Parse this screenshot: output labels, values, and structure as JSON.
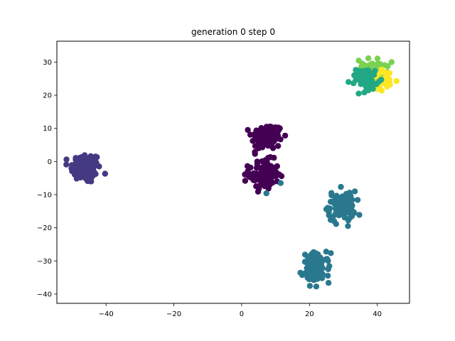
{
  "chart_data": {
    "type": "scatter",
    "title": "generation 0 step 0",
    "xlabel": "",
    "ylabel": "",
    "xlim": [
      -54.5,
      49.5
    ],
    "ylim": [
      -42.8,
      36.3
    ],
    "xticks": [
      -40,
      -20,
      0,
      20,
      40
    ],
    "yticks": [
      -40,
      -30,
      -20,
      -10,
      0,
      10,
      20,
      30
    ],
    "xtick_labels": [
      "−40",
      "−20",
      "0",
      "20",
      "40"
    ],
    "ytick_labels": [
      "−40",
      "−30",
      "−20",
      "−10",
      "0",
      "10",
      "20",
      "30"
    ],
    "grid": false,
    "legend": "none",
    "clusters": [
      {
        "cx": -46,
        "cy": -2,
        "sx": 2.2,
        "sy": 2.3,
        "n": 110,
        "color": "#443983"
      },
      {
        "cx": 7.5,
        "cy": 7.5,
        "sx": 2.3,
        "sy": 2.0,
        "n": 110,
        "color": "#440154"
      },
      {
        "cx": 6.5,
        "cy": -4,
        "sx": 2.2,
        "sy": 2.2,
        "n": 110,
        "color": "#440154"
      },
      {
        "cx": 29.5,
        "cy": -13.5,
        "sx": 2.0,
        "sy": 2.3,
        "n": 100,
        "color": "#2a788e"
      },
      {
        "cx": 22,
        "cy": -32,
        "sx": 2.0,
        "sy": 2.2,
        "n": 100,
        "color": "#2a788e"
      },
      {
        "cx": 38.5,
        "cy": 28,
        "sx": 2.2,
        "sy": 1.5,
        "n": 40,
        "color": "#7ad151"
      },
      {
        "cx": 41,
        "cy": 24.5,
        "sx": 1.8,
        "sy": 1.6,
        "n": 45,
        "color": "#fde725"
      },
      {
        "cx": 37,
        "cy": 25,
        "sx": 1.6,
        "sy": 1.6,
        "n": 45,
        "color": "#22a884"
      }
    ],
    "outliers": [
      {
        "x": 11.5,
        "y": -6.5,
        "color": "#2a788e"
      },
      {
        "x": 7.3,
        "y": -9.6,
        "color": "#2a788e"
      },
      {
        "x": 31.5,
        "y": 24,
        "color": "#22a884"
      },
      {
        "x": 34.5,
        "y": 20.5,
        "color": "#22a884"
      }
    ]
  }
}
